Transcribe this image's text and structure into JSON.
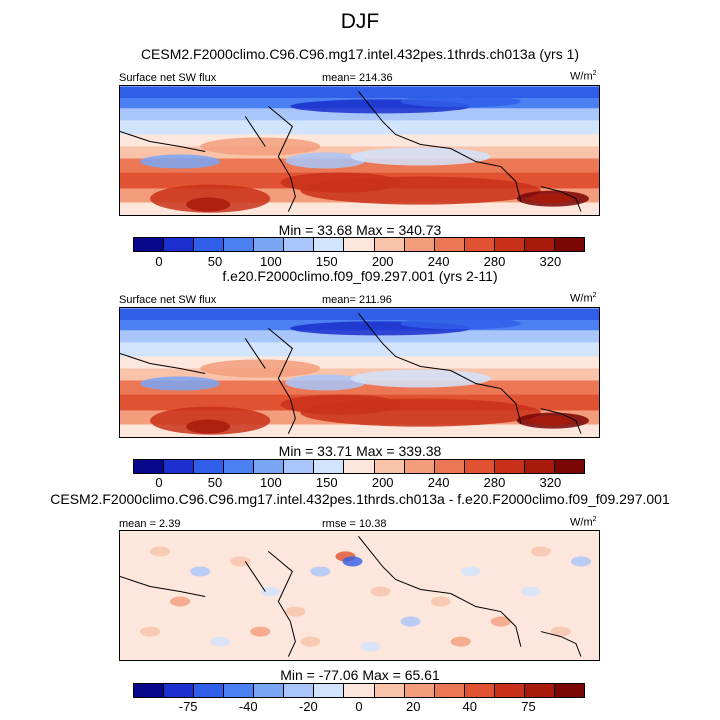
{
  "figure": {
    "title": "DJF"
  },
  "colors": {
    "abs_scale": [
      "#08088a",
      "#1a2fcc",
      "#2f5fe8",
      "#4a80f2",
      "#7aa6f6",
      "#a9c6fa",
      "#d2e3fc",
      "#fde7dc",
      "#f8c3a9",
      "#f39d7c",
      "#ec7754",
      "#e05232",
      "#c93119",
      "#a81a0b",
      "#7a0606"
    ],
    "diff_scale": [
      "#08088a",
      "#1a2fcc",
      "#2f5fe8",
      "#4a80f2",
      "#7aa6f6",
      "#a9c6fa",
      "#d2e3fc",
      "#fde7dc",
      "#f8c3a9",
      "#f39d7c",
      "#ec7754",
      "#e05232",
      "#c93119",
      "#a81a0b",
      "#7a0606"
    ]
  },
  "chart_data": [
    {
      "type": "heatmap",
      "title": "CESM2.F2000climo.C96.C96.mg17.intel.432pes.1thrds.ch013a (yrs 1)",
      "left_label": "Surface net SW flux",
      "center_label": "mean= 214.36",
      "units": "W/m",
      "units_exp": "2",
      "stats": "Min =  33.68 Max = 340.73",
      "colorbar_ticks": [
        "0",
        "50",
        "100",
        "150",
        "200",
        "240",
        "280",
        "320"
      ]
    },
    {
      "type": "heatmap",
      "title": "f.e20.F2000climo.f09_f09.297.001 (yrs 2-11)",
      "left_label": "Surface net SW flux",
      "center_label": "mean= 211.96",
      "units": "W/m",
      "units_exp": "2",
      "stats": "Min =  33.71 Max = 339.38",
      "colorbar_ticks": [
        "0",
        "50",
        "100",
        "150",
        "200",
        "240",
        "280",
        "320"
      ]
    },
    {
      "type": "heatmap",
      "title": "CESM2.F2000climo.C96.C96.mg17.intel.432pes.1thrds.ch013a - f.e20.F2000climo.f09_f09.297.001",
      "left_label": "mean =   2.39",
      "center_label": "rmse =  10.38",
      "units": "W/m",
      "units_exp": "2",
      "stats": "Min = -77.06 Max =  65.61",
      "colorbar_ticks": [
        "-75",
        "-40",
        "-20",
        "0",
        "20",
        "40",
        "75"
      ]
    }
  ]
}
